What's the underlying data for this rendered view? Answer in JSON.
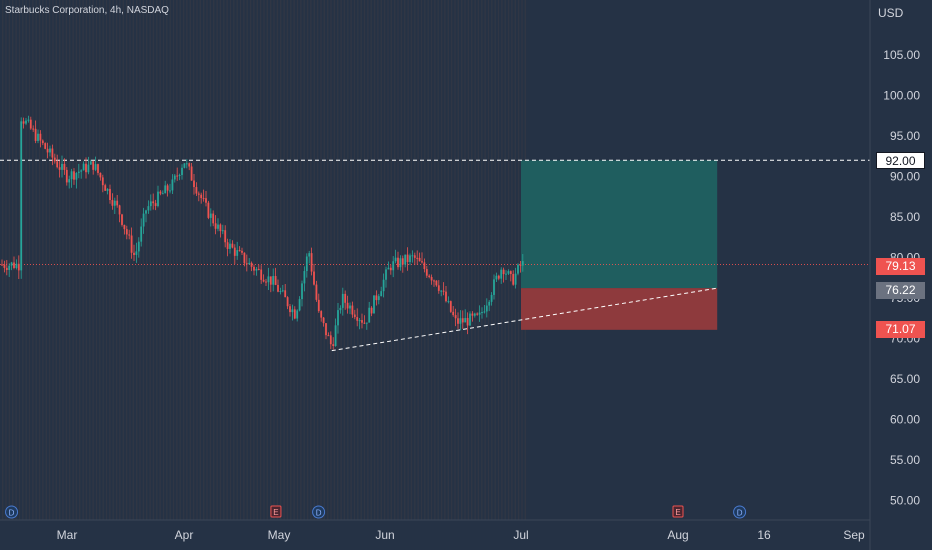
{
  "header": {
    "title": "Starbucks Corporation, 4h, NASDAQ"
  },
  "axis": {
    "currency": "USD",
    "y_ticks": [
      "105.00",
      "100.00",
      "95.00",
      "90.00",
      "85.00",
      "80.00",
      "75.00",
      "70.00",
      "65.00",
      "60.00",
      "55.00",
      "50.00"
    ],
    "x_ticks": [
      "Mar",
      "Apr",
      "May",
      "Jun",
      "Jul",
      "Aug",
      "16",
      "Sep"
    ]
  },
  "markers": {
    "dividend": "D",
    "earnings": "E"
  },
  "price_labels": {
    "target": "92.00",
    "current": "79.13",
    "entry": "76.22",
    "stop": "71.07"
  },
  "colors": {
    "background": "#253245",
    "up": "#26a69a",
    "down": "#ef5350",
    "profit_zone": "#1f5e5f",
    "loss_zone": "#8e3a3d",
    "current_tag": "#ef5350",
    "entry_tag": "#6b7280",
    "stop_tag": "#ef5350"
  },
  "chart_data": {
    "type": "candlestick",
    "symbol": "Starbucks Corporation",
    "interval": "4h",
    "exchange": "NASDAQ",
    "currency": "USD",
    "ylim": [
      47.5,
      108
    ],
    "x_labels": [
      "Mar",
      "Apr",
      "May",
      "Jun",
      "Jul",
      "Aug",
      "16",
      "Sep"
    ],
    "close_path": [
      [
        "Feb 15",
        97.5
      ],
      [
        "Feb 22",
        94.0
      ],
      [
        "Mar 1",
        90.0
      ],
      [
        "Mar 8",
        91.5
      ],
      [
        "Mar 15",
        85.5
      ],
      [
        "Mar 19",
        80.0
      ],
      [
        "Mar 22",
        86.0
      ],
      [
        "Mar 29",
        89.0
      ],
      [
        "Apr 1",
        92.0
      ],
      [
        "Apr 8",
        86.0
      ],
      [
        "Apr 15",
        81.5
      ],
      [
        "Apr 22",
        79.0
      ],
      [
        "Apr 29",
        77.0
      ],
      [
        "May 6",
        73.0
      ],
      [
        "May 10",
        81.0
      ],
      [
        "May 13",
        73.0
      ],
      [
        "May 17",
        69.0
      ],
      [
        "May 20",
        75.0
      ],
      [
        "May 27",
        72.0
      ],
      [
        "Jun 3",
        79.0
      ],
      [
        "Jun 8",
        80.0
      ],
      [
        "Jun 13",
        77.0
      ],
      [
        "Jun 17",
        72.0
      ],
      [
        "Jun 22",
        72.5
      ],
      [
        "Jun 27",
        79.0
      ],
      [
        "Jun 29",
        77.0
      ],
      [
        "Jul 1",
        79.13
      ]
    ],
    "last_price": 79.13,
    "long_position": {
      "entry": 76.22,
      "target": 92.0,
      "stop": 71.07,
      "start": "Jul 1",
      "end": "Aug 8"
    },
    "horizontal_line": 92.0,
    "trendline": {
      "from": [
        "May 17",
        68.5
      ],
      "to": [
        "Aug 8",
        76.22
      ]
    },
    "events": [
      {
        "type": "dividend",
        "label": "D",
        "date": "Feb 12"
      },
      {
        "type": "earnings",
        "label": "E",
        "date": "Apr 30"
      },
      {
        "type": "dividend",
        "label": "D",
        "date": "May 13"
      },
      {
        "type": "earnings",
        "label": "E",
        "date": "Aug 1"
      },
      {
        "type": "dividend",
        "label": "D",
        "date": "Aug 12"
      }
    ]
  }
}
